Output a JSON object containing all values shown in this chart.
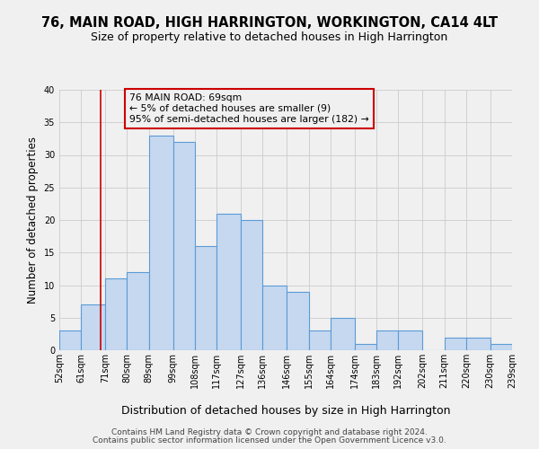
{
  "title1": "76, MAIN ROAD, HIGH HARRINGTON, WORKINGTON, CA14 4LT",
  "title2": "Size of property relative to detached houses in High Harrington",
  "xlabel": "Distribution of detached houses by size in High Harrington",
  "ylabel": "Number of detached properties",
  "bin_edges": [
    52,
    61,
    71,
    80,
    89,
    99,
    108,
    117,
    127,
    136,
    146,
    155,
    164,
    174,
    183,
    192,
    202,
    211,
    220,
    230,
    239
  ],
  "bar_heights": [
    3,
    7,
    11,
    12,
    33,
    32,
    16,
    21,
    20,
    10,
    9,
    3,
    5,
    1,
    3,
    3,
    0,
    2,
    2,
    1
  ],
  "bar_color": "#c5d8f0",
  "bar_edge_color": "#5b9bd5",
  "bar_edge_width": 0.8,
  "property_line_x": 69,
  "property_line_color": "#cc0000",
  "annotation_box_text": "76 MAIN ROAD: 69sqm\n← 5% of detached houses are smaller (9)\n95% of semi-detached houses are larger (182) →",
  "annotation_box_edge_color": "#cc0000",
  "ylim": [
    0,
    40
  ],
  "yticks": [
    0,
    5,
    10,
    15,
    20,
    25,
    30,
    35,
    40
  ],
  "grid_color": "#cccccc",
  "background_color": "#f0f0f0",
  "footnote1": "Contains HM Land Registry data © Crown copyright and database right 2024.",
  "footnote2": "Contains public sector information licensed under the Open Government Licence v3.0.",
  "tick_label_fontsize": 7.0,
  "title1_fontsize": 10.5,
  "title2_fontsize": 9.0,
  "xlabel_fontsize": 9.0,
  "ylabel_fontsize": 8.5,
  "annotation_fontsize": 7.8,
  "footnote_fontsize": 6.5
}
